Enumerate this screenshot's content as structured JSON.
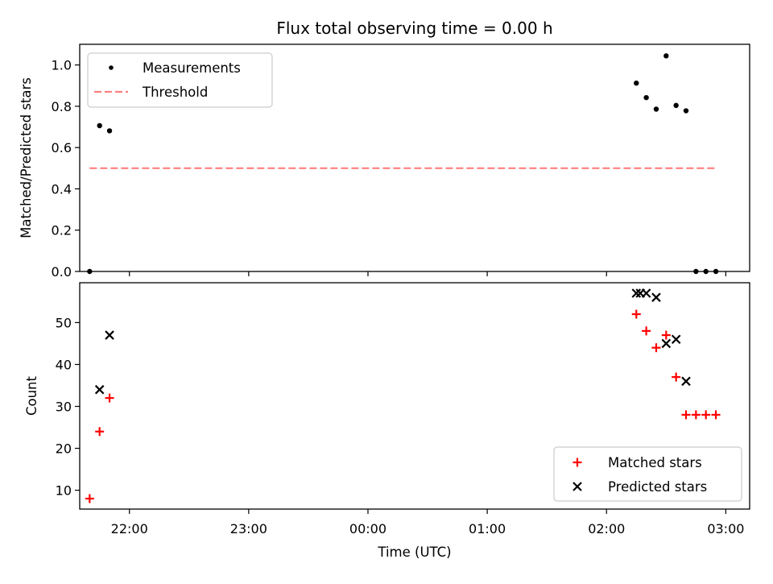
{
  "chart_data": [
    {
      "type": "scatter",
      "title": "Flux total observing time = 0.00 h",
      "ylabel": "Matched/Predicted stars",
      "xlabel": "",
      "x_unit": "UTC time (h)",
      "xlim": [
        "21:35",
        "03:12"
      ],
      "ylim": [
        0,
        1.1
      ],
      "yticks": [
        "0.0",
        "0.2",
        "0.4",
        "0.6",
        "0.8",
        "1.0"
      ],
      "grid": false,
      "legend_position": "upper left",
      "series": [
        {
          "name": "Measurements",
          "marker": "dot",
          "color": "#000000",
          "points": [
            {
              "x": "21:40",
              "y": 0.0
            },
            {
              "x": "21:45",
              "y": 0.706
            },
            {
              "x": "21:50",
              "y": 0.681
            },
            {
              "x": "02:15",
              "y": 0.912
            },
            {
              "x": "02:20",
              "y": 0.842
            },
            {
              "x": "02:25",
              "y": 0.786
            },
            {
              "x": "02:30",
              "y": 1.044
            },
            {
              "x": "02:35",
              "y": 0.804
            },
            {
              "x": "02:40",
              "y": 0.778
            },
            {
              "x": "02:45",
              "y": 0.0
            },
            {
              "x": "02:50",
              "y": 0.0
            },
            {
              "x": "02:55",
              "y": 0.0
            }
          ]
        },
        {
          "name": "Threshold",
          "style": "dashed",
          "color": "#ff7f7f",
          "points": [
            {
              "x": "21:40",
              "y": 0.5
            },
            {
              "x": "02:55",
              "y": 0.5
            }
          ]
        }
      ]
    },
    {
      "type": "scatter",
      "title": "",
      "xlabel": "Time (UTC)",
      "ylabel": "Count",
      "x_unit": "UTC time (h)",
      "xlim": [
        "21:35",
        "03:12"
      ],
      "ylim": [
        5.5,
        59.5
      ],
      "xticks": [
        "22:00",
        "23:00",
        "00:00",
        "01:00",
        "02:00",
        "03:00"
      ],
      "yticks": [
        "10",
        "20",
        "30",
        "40",
        "50"
      ],
      "grid": false,
      "legend_position": "lower right",
      "series": [
        {
          "name": "Matched stars",
          "marker": "plus",
          "color": "#ff0000",
          "points": [
            {
              "x": "21:40",
              "y": 8
            },
            {
              "x": "21:45",
              "y": 24
            },
            {
              "x": "21:50",
              "y": 32
            },
            {
              "x": "02:15",
              "y": 52
            },
            {
              "x": "02:20",
              "y": 48
            },
            {
              "x": "02:25",
              "y": 44
            },
            {
              "x": "02:30",
              "y": 47
            },
            {
              "x": "02:35",
              "y": 37
            },
            {
              "x": "02:40",
              "y": 28
            },
            {
              "x": "02:45",
              "y": 28
            },
            {
              "x": "02:50",
              "y": 28
            },
            {
              "x": "02:55",
              "y": 28
            }
          ]
        },
        {
          "name": "Predicted stars",
          "marker": "x",
          "color": "#000000",
          "points": [
            {
              "x": "21:45",
              "y": 34
            },
            {
              "x": "21:50",
              "y": 47
            },
            {
              "x": "02:15",
              "y": 57
            },
            {
              "x": "02:17",
              "y": 57
            },
            {
              "x": "02:20",
              "y": 57
            },
            {
              "x": "02:25",
              "y": 56
            },
            {
              "x": "02:30",
              "y": 45
            },
            {
              "x": "02:35",
              "y": 46
            },
            {
              "x": "02:40",
              "y": 36
            }
          ]
        }
      ]
    }
  ]
}
